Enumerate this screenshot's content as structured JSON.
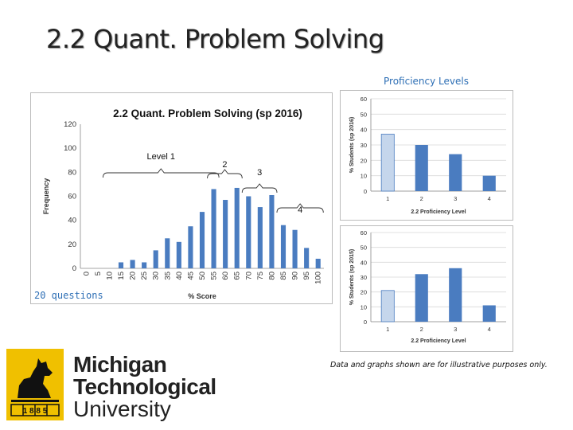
{
  "slide": {
    "title": "2.2 Quant. Problem Solving",
    "proficiency_label": "Proficiency Levels",
    "questions_label": "20 questions",
    "disclaimer": "Data and graphs shown are for illustrative purposes only.",
    "logo": {
      "line1": "Michigan",
      "line2": "Technological",
      "line3": "University",
      "year": "1 8 8 5"
    }
  },
  "colors": {
    "bar": "#4a7cc0",
    "bar_light": "#c5d6ec",
    "accent_text": "#2e6fb5"
  },
  "chart_data": [
    {
      "type": "bar",
      "title": "2.2 Quant. Problem Solving (sp 2016)",
      "xlabel": "% Score",
      "ylabel": "Frequency",
      "ylim": [
        0,
        120
      ],
      "yticks": [
        0,
        20,
        40,
        60,
        80,
        100,
        120
      ],
      "categories": [
        "0",
        "5",
        "10",
        "15",
        "20",
        "25",
        "30",
        "35",
        "40",
        "45",
        "50",
        "55",
        "60",
        "65",
        "70",
        "75",
        "80",
        "85",
        "90",
        "95",
        "100"
      ],
      "values": [
        0,
        0,
        0,
        5,
        7,
        5,
        15,
        25,
        22,
        35,
        47,
        66,
        57,
        67,
        60,
        51,
        61,
        36,
        32,
        17,
        8
      ],
      "annotations": [
        {
          "label": "Level 1",
          "from": "10",
          "to": "55"
        },
        {
          "label": "2",
          "from": "55",
          "to": "65"
        },
        {
          "label": "3",
          "from": "70",
          "to": "80"
        },
        {
          "label": "4",
          "from": "85",
          "to": "100"
        }
      ]
    },
    {
      "type": "bar",
      "title": "",
      "xlabel": "2.2 Proficiency Level",
      "ylabel": "% Students (sp 2016)",
      "ylim": [
        0,
        60
      ],
      "yticks": [
        0,
        10,
        20,
        30,
        40,
        50,
        60
      ],
      "categories": [
        "1",
        "2",
        "3",
        "4"
      ],
      "values": [
        37,
        30,
        24,
        10
      ]
    },
    {
      "type": "bar",
      "title": "",
      "xlabel": "2.2 Proficiency Level",
      "ylabel": "% Students (sp 2015)",
      "ylim": [
        0,
        60
      ],
      "yticks": [
        0,
        10,
        20,
        30,
        40,
        50,
        60
      ],
      "categories": [
        "1",
        "2",
        "3",
        "4"
      ],
      "values": [
        21,
        32,
        36,
        11
      ]
    }
  ]
}
